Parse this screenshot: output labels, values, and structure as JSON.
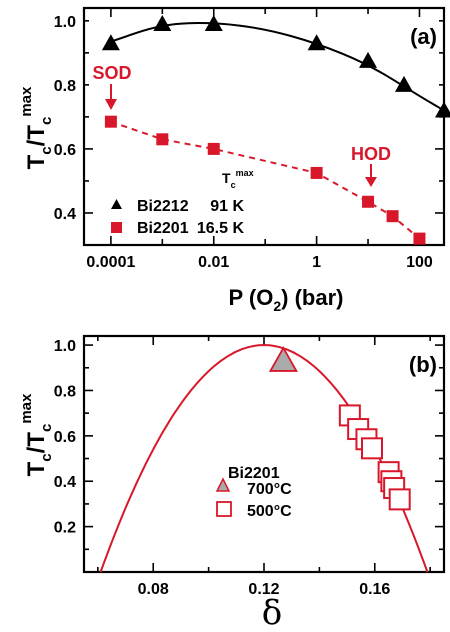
{
  "chart_data": [
    {
      "panel": "(a)",
      "type": "scatter",
      "xlabel": "P (O₂) (bar)",
      "ylabel": "T_c/T_c^max",
      "xscale": "log",
      "xlim": [
        3e-05,
        300
      ],
      "ylim": [
        0.3,
        1.04
      ],
      "xtick_labels": [
        "0.0001",
        "0.01",
        "1",
        "100"
      ],
      "ytick_labels": [
        "0.4",
        "0.6",
        "0.8",
        "1.0"
      ],
      "legend_header": "T_c^max",
      "legend": [
        {
          "name": "Bi2212",
          "value": "91 K"
        },
        {
          "name": "Bi2201",
          "value": "16.5 K"
        }
      ],
      "annotations": [
        "SOD",
        "HOD"
      ],
      "series": [
        {
          "name": "Bi2212",
          "marker": "triangle",
          "color": "#000000",
          "points": [
            [
              0.0001,
              0.93
            ],
            [
              0.001,
              0.99
            ],
            [
              0.01,
              0.99
            ],
            [
              1,
              0.93
            ],
            [
              10,
              0.875
            ],
            [
              50,
              0.8
            ],
            [
              300,
              0.72
            ]
          ],
          "fit_curve": [
            [
              0.0001,
              0.935
            ],
            [
              0.001,
              0.99
            ],
            [
              0.01,
              0.995
            ],
            [
              0.1,
              0.975
            ],
            [
              1,
              0.93
            ],
            [
              10,
              0.865
            ],
            [
              100,
              0.765
            ],
            [
              300,
              0.72
            ]
          ]
        },
        {
          "name": "Bi2201",
          "marker": "square",
          "color": "#d8182a",
          "points": [
            [
              0.0001,
              0.685
            ],
            [
              0.001,
              0.63
            ],
            [
              0.01,
              0.6
            ],
            [
              1,
              0.525
            ],
            [
              10,
              0.435
            ],
            [
              30,
              0.39
            ],
            [
              100,
              0.32
            ]
          ],
          "dashed_line": true
        }
      ]
    },
    {
      "panel": "(b)",
      "type": "scatter",
      "xlabel": "δ",
      "ylabel": "T_c/T_c^max",
      "xlim": [
        0.055,
        0.185
      ],
      "ylim": [
        0.0,
        1.04
      ],
      "xtick_labels": [
        "0.08",
        "0.12",
        "0.16"
      ],
      "ytick_labels": [
        "0.2",
        "0.4",
        "0.6",
        "0.8",
        "1.0"
      ],
      "legend_header": "Bi2201",
      "legend": [
        {
          "name": "700°C",
          "marker": "triangle"
        },
        {
          "name": "500°C",
          "marker": "open-square"
        }
      ],
      "curve": {
        "peak_x": 0.12,
        "peak_y": 1.0,
        "zeros": [
          0.061,
          0.179
        ]
      },
      "series": [
        {
          "name": "700°C",
          "marker": "triangle",
          "points": [
            [
              0.127,
              0.93
            ]
          ]
        },
        {
          "name": "500°C",
          "marker": "open-square",
          "points": [
            [
              0.151,
              0.69
            ],
            [
              0.154,
              0.63
            ],
            [
              0.157,
              0.585
            ],
            [
              0.159,
              0.545
            ],
            [
              0.165,
              0.44
            ],
            [
              0.166,
              0.4
            ],
            [
              0.167,
              0.37
            ],
            [
              0.169,
              0.32
            ]
          ]
        }
      ]
    }
  ]
}
